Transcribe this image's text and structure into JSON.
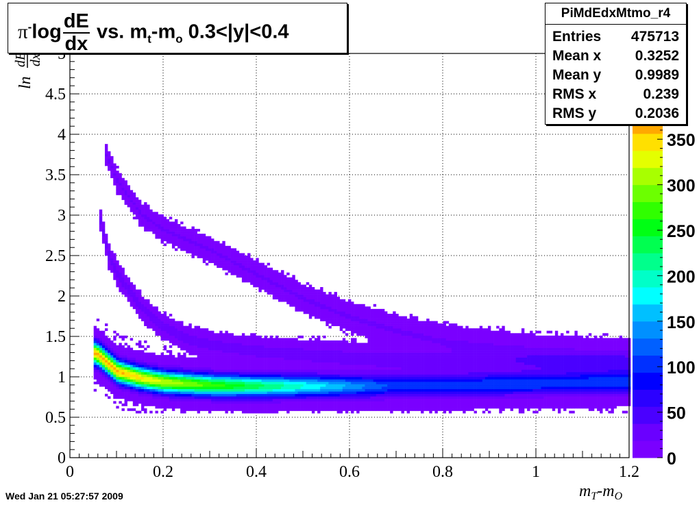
{
  "chart_data": {
    "type": "heatmap",
    "title": {
      "prefix": "π",
      "charge": "-",
      "word": "log",
      "frac_num": "dE",
      "frac_den": "dx",
      "mid": " vs. m",
      "sub1": "t",
      "dash": "-m",
      "sub2": "o",
      "tail": " 0.3<|y|<0.4"
    },
    "xlabel": "m",
    "xlabel_sub1": "T",
    "xlabel_dash": "-m",
    "xlabel_sub2": "O",
    "ylabel": "ln",
    "ylabel_frac_num": "dE",
    "ylabel_frac_den": "dx",
    "xlim": [
      0,
      1.2
    ],
    "ylim": [
      0,
      5
    ],
    "zlim": [
      0,
      375
    ],
    "x_ticks": [
      "0",
      "0.2",
      "0.4",
      "0.6",
      "0.8",
      "1",
      "1.2"
    ],
    "y_ticks": [
      "0",
      "0.5",
      "1",
      "1.5",
      "2",
      "2.5",
      "3",
      "3.5",
      "4",
      "4.5",
      "5"
    ],
    "z_ticks": [
      "0",
      "50",
      "100",
      "150",
      "200",
      "250",
      "300",
      "350"
    ],
    "grid": true,
    "colorbar_position": "right",
    "bands": [
      {
        "name": "pion",
        "points": [
          [
            0.05,
            1.28
          ],
          [
            0.06,
            1.25
          ],
          [
            0.08,
            1.15
          ],
          [
            0.1,
            1.05
          ],
          [
            0.15,
            0.97
          ],
          [
            0.2,
            0.92
          ],
          [
            0.3,
            0.88
          ],
          [
            0.4,
            0.87
          ],
          [
            0.6,
            0.87
          ],
          [
            0.8,
            0.88
          ],
          [
            1.0,
            0.9
          ],
          [
            1.2,
            0.92
          ]
        ],
        "peak": 360
      },
      {
        "name": "kaon",
        "points": [
          [
            0.06,
            3.0
          ],
          [
            0.08,
            2.5
          ],
          [
            0.1,
            2.25
          ],
          [
            0.15,
            1.85
          ],
          [
            0.2,
            1.6
          ],
          [
            0.25,
            1.45
          ],
          [
            0.3,
            1.38
          ],
          [
            0.4,
            1.3
          ],
          [
            0.6,
            1.22
          ],
          [
            0.8,
            1.18
          ],
          [
            1.0,
            1.16
          ],
          [
            1.2,
            1.14
          ]
        ],
        "peak": 30
      },
      {
        "name": "proton",
        "points": [
          [
            0.07,
            3.8
          ],
          [
            0.1,
            3.4
          ],
          [
            0.15,
            3.0
          ],
          [
            0.2,
            2.8
          ],
          [
            0.3,
            2.55
          ],
          [
            0.4,
            2.25
          ],
          [
            0.5,
            1.95
          ],
          [
            0.6,
            1.72
          ],
          [
            0.7,
            1.55
          ],
          [
            0.8,
            1.42
          ],
          [
            0.9,
            1.35
          ],
          [
            1.0,
            1.28
          ],
          [
            1.2,
            1.2
          ]
        ],
        "peak": 20
      }
    ]
  },
  "stats": {
    "name": "PiMdEdxMtmo_r4",
    "rows": [
      {
        "key": "Entries",
        "value": "475713"
      },
      {
        "key": "Mean x",
        "value": "0.3252"
      },
      {
        "key": "Mean y",
        "value": "0.9989"
      },
      {
        "key": "RMS x",
        "value": "0.239"
      },
      {
        "key": "RMS y",
        "value": "0.2036"
      }
    ]
  },
  "timestamp": "Wed Jan 21 05:27:57 2009",
  "palette": [
    "#7a00ff",
    "#6a00ff",
    "#4a00ff",
    "#2b00ff",
    "#0000ff",
    "#0030ff",
    "#0060ff",
    "#0090ff",
    "#00c0ff",
    "#00ffff",
    "#00ffc8",
    "#00ff8c",
    "#00ff50",
    "#00ff14",
    "#30ff00",
    "#6cff00",
    "#a8ff00",
    "#e4ff00",
    "#ffe000",
    "#ffa800"
  ]
}
